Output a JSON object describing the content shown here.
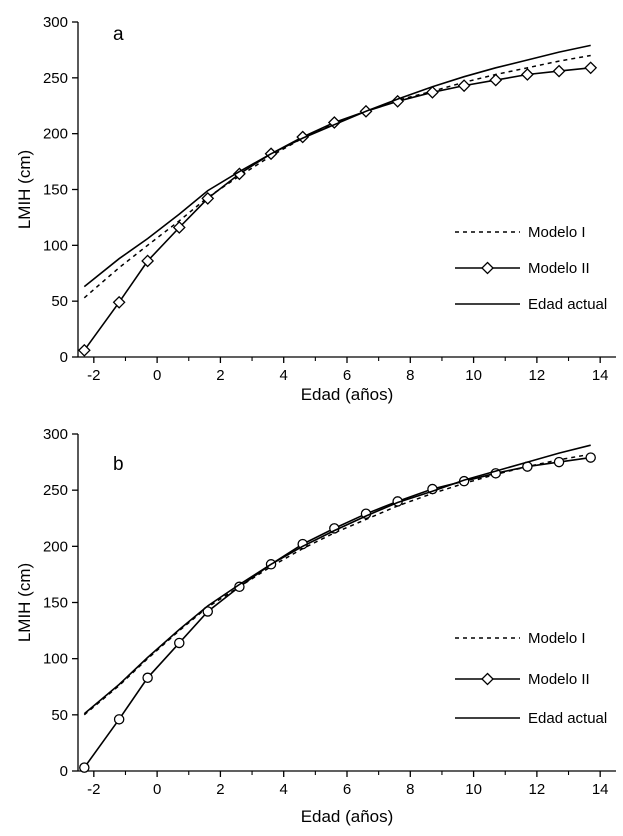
{
  "chart_data": [
    {
      "type": "line",
      "panel_label": "a",
      "xlabel": "Edad (años)",
      "ylabel": "LMIH (cm)",
      "xlim": [
        -2.5,
        14.5
      ],
      "ylim": [
        0,
        300
      ],
      "xticks": [
        "-2",
        "0",
        "2",
        "4",
        "6",
        "8",
        "10",
        "12",
        "14"
      ],
      "yticks": [
        "0",
        "50",
        "100",
        "150",
        "200",
        "250",
        "300"
      ],
      "grid": false,
      "legend_position": "center-right",
      "series": [
        {
          "name": "Modelo I",
          "style": "dotted",
          "marker": "none",
          "x": [
            -2.3,
            -1.2,
            -0.3,
            0.7,
            1.6,
            2.6,
            3.6,
            4.6,
            5.6,
            6.6,
            7.6,
            8.7,
            9.7,
            10.7,
            11.7,
            12.7,
            13.7
          ],
          "y": [
            53,
            80,
            100,
            122,
            143,
            162,
            180,
            196,
            209,
            220,
            230,
            238,
            246,
            253,
            259,
            265,
            270
          ]
        },
        {
          "name": "Modelo II",
          "style": "solid",
          "marker": "diamond",
          "x": [
            -2.3,
            -1.2,
            -0.3,
            0.7,
            1.6,
            2.6,
            3.6,
            4.6,
            5.6,
            6.6,
            7.6,
            8.7,
            9.7,
            10.7,
            11.7,
            12.7,
            13.7
          ],
          "y": [
            6,
            49,
            86,
            116,
            142,
            164,
            182,
            197,
            210,
            220,
            229,
            237,
            243,
            248,
            253,
            256,
            259
          ]
        },
        {
          "name": "Edad actual",
          "style": "solid",
          "marker": "none",
          "x": [
            -2.3,
            -1.2,
            -0.3,
            0.7,
            1.6,
            2.6,
            3.6,
            4.6,
            5.6,
            6.6,
            7.6,
            8.7,
            9.7,
            10.7,
            11.7,
            12.7,
            13.7
          ],
          "y": [
            63,
            88,
            106,
            128,
            149,
            166,
            182,
            196,
            208,
            220,
            231,
            242,
            251,
            259,
            266,
            273,
            279
          ]
        }
      ]
    },
    {
      "type": "line",
      "panel_label": "b",
      "xlabel": "Edad (años)",
      "ylabel": "LMIH (cm)",
      "xlim": [
        -2.5,
        14.5
      ],
      "ylim": [
        0,
        300
      ],
      "xticks": [
        "-2",
        "0",
        "2",
        "4",
        "6",
        "8",
        "10",
        "12",
        "14"
      ],
      "yticks": [
        "0",
        "50",
        "100",
        "150",
        "200",
        "250",
        "300"
      ],
      "grid": false,
      "legend_position": "center-right",
      "series": [
        {
          "name": "Modelo I",
          "style": "dotted",
          "marker": "none",
          "x": [
            -2.3,
            -1.2,
            -0.3,
            0.7,
            1.6,
            2.6,
            3.6,
            4.6,
            5.6,
            6.6,
            7.6,
            8.7,
            9.7,
            10.7,
            11.7,
            12.7,
            13.7
          ],
          "y": [
            50,
            76,
            100,
            125,
            146,
            164,
            182,
            198,
            212,
            224,
            236,
            247,
            256,
            264,
            271,
            277,
            282
          ]
        },
        {
          "name": "Modelo II",
          "style": "solid",
          "marker": "circle",
          "legend_marker": "diamond",
          "x": [
            -2.3,
            -1.2,
            -0.3,
            0.7,
            1.6,
            2.6,
            3.6,
            4.6,
            5.6,
            6.6,
            7.6,
            8.7,
            9.7,
            10.7,
            11.7,
            12.7,
            13.7
          ],
          "y": [
            3,
            46,
            83,
            114,
            142,
            164,
            184,
            202,
            216,
            229,
            240,
            251,
            258,
            265,
            271,
            275,
            279
          ]
        },
        {
          "name": "Edad actual",
          "style": "solid",
          "marker": "none",
          "x": [
            -2.3,
            -1.2,
            -0.3,
            0.7,
            1.6,
            2.6,
            3.6,
            4.6,
            5.6,
            6.6,
            7.6,
            8.7,
            9.7,
            10.7,
            11.7,
            12.7,
            13.7
          ],
          "y": [
            51,
            77,
            101,
            126,
            147,
            166,
            184,
            200,
            214,
            227,
            239,
            249,
            259,
            267,
            275,
            283,
            290
          ]
        }
      ]
    }
  ]
}
